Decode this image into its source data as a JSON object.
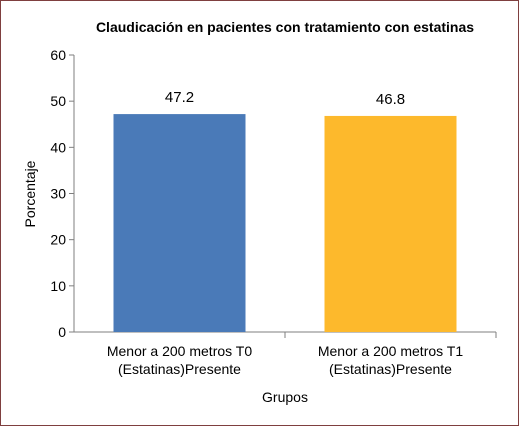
{
  "chart_data": {
    "type": "bar",
    "title": "Claudicación en pacientes con tratamiento con estatinas",
    "xlabel": "Grupos",
    "ylabel": "Porcentaje",
    "ylim": [
      0,
      60
    ],
    "yticks": [
      0,
      10,
      20,
      30,
      40,
      50,
      60
    ],
    "grid": false,
    "legend": "none",
    "categories": [
      [
        "Menor a 200 metros T0",
        "(Estatinas)Presente"
      ],
      [
        "Menor a 200 metros T1",
        "(Estatinas)Presente"
      ]
    ],
    "values": [
      47.2,
      46.8
    ],
    "data_labels": [
      "47.2",
      "46.8"
    ],
    "colors": [
      "#4a7ab8",
      "#fdb92c"
    ]
  }
}
